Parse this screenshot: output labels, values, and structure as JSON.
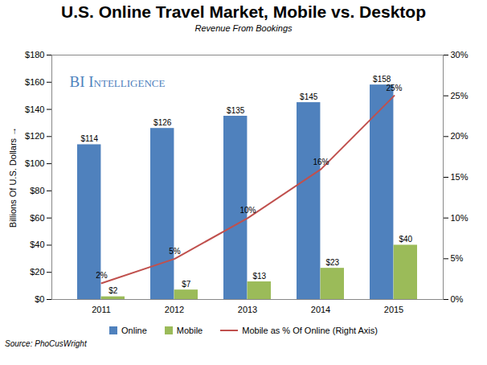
{
  "chart_data": {
    "type": "bar",
    "title": "U.S. Online Travel Market, Mobile vs. Desktop",
    "subtitle": "Revenue From Bookings",
    "y_label": "Billions Of U.S. Dollars",
    "annotation": "BI Intelligence",
    "source": "Source: PhoCusWright",
    "categories": [
      "2011",
      "2012",
      "2013",
      "2014",
      "2015"
    ],
    "series": [
      {
        "name": "Online",
        "type": "bar",
        "color": "#4f81bd",
        "values": [
          114,
          126,
          135,
          145,
          158
        ],
        "value_labels": [
          "$114",
          "$126",
          "$135",
          "$145",
          "$158"
        ]
      },
      {
        "name": "Mobile",
        "type": "bar",
        "color": "#9bbb59",
        "values": [
          2,
          7,
          13,
          23,
          40
        ],
        "value_labels": [
          "$2",
          "$7",
          "$13",
          "$23",
          "$40"
        ]
      },
      {
        "name": "Mobile as % Of Online (Right Axis)",
        "type": "line",
        "axis": "y2",
        "color": "#c0504d",
        "values": [
          2,
          5,
          10,
          16,
          25
        ],
        "value_labels": [
          "2%",
          "5%",
          "10%",
          "16%",
          "25%"
        ]
      }
    ],
    "ylim": [
      0,
      180
    ],
    "yticks": [
      {
        "value": 0,
        "label": "$0"
      },
      {
        "value": 20,
        "label": "$20"
      },
      {
        "value": 40,
        "label": "$40"
      },
      {
        "value": 60,
        "label": "$60"
      },
      {
        "value": 80,
        "label": "$80"
      },
      {
        "value": 100,
        "label": "$100"
      },
      {
        "value": 120,
        "label": "$120"
      },
      {
        "value": 140,
        "label": "$140"
      },
      {
        "value": 160,
        "label": "$160"
      },
      {
        "value": 180,
        "label": "$180"
      }
    ],
    "y2lim": [
      0,
      30
    ],
    "y2ticks": [
      {
        "value": 0,
        "label": "0%"
      },
      {
        "value": 5,
        "label": "5%"
      },
      {
        "value": 10,
        "label": "10%"
      },
      {
        "value": 15,
        "label": "15%"
      },
      {
        "value": 20,
        "label": "20%"
      },
      {
        "value": 25,
        "label": "25%"
      },
      {
        "value": 30,
        "label": "30%"
      }
    ],
    "grid": false,
    "data_labels": true,
    "legend": "bottom"
  }
}
